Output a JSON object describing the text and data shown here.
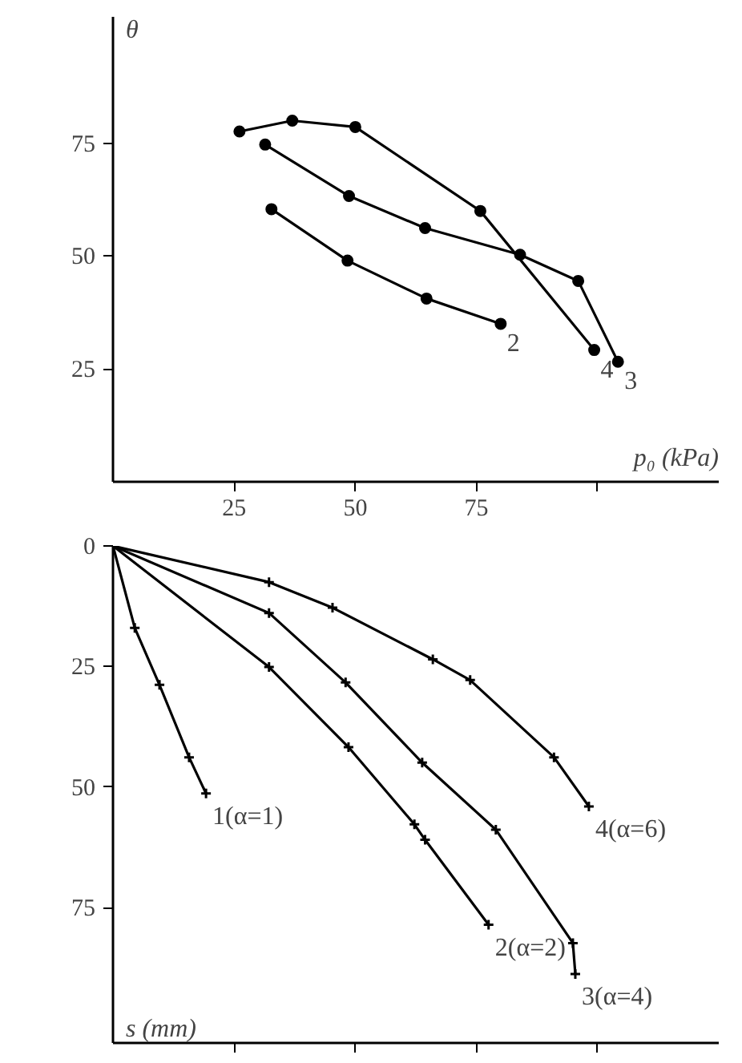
{
  "chart_data": [
    {
      "type": "line",
      "ylabel": "θ",
      "xlabel": "p₀ (kPa)",
      "xlim": [
        0,
        125
      ],
      "ylim": [
        0,
        103
      ],
      "xticks": [
        25,
        50,
        75,
        {
          "value": 100,
          "label": null
        }
      ],
      "yticks": [
        25,
        50,
        75
      ],
      "marker": "circle",
      "grid": false,
      "series": [
        {
          "color": "#000000",
          "x": [
            26.1,
            37,
            50,
            75.8,
            99.3
          ],
          "values": [
            77.6,
            80,
            78.6,
            60,
            29.2
          ]
        },
        {
          "color": "#000000",
          "x": [
            31.4,
            48.7,
            64.4,
            84,
            96,
            104.2
          ],
          "values": [
            74.7,
            63.3,
            56.2,
            50.3,
            44.5,
            26.6
          ]
        },
        {
          "color": "#000000",
          "x": [
            32.7,
            48.4,
            64.7,
            80
          ],
          "values": [
            60.4,
            49,
            40.6,
            35
          ]
        }
      ],
      "annotations": [
        {
          "text": "2",
          "x": 80,
          "y": 35
        },
        {
          "text": "4",
          "x": 99.3,
          "y": 29.2
        },
        {
          "text": "3",
          "x": 104.2,
          "y": 26.6
        }
      ]
    },
    {
      "type": "line",
      "ylabel": "s (mm)",
      "xlim": [
        0,
        125
      ],
      "ylim": [
        103,
        0
      ],
      "xticks": [
        25,
        50,
        75,
        100
      ],
      "yticks": [
        0,
        25,
        50,
        75
      ],
      "tick_labels": "y",
      "marker": "cross",
      "grid": false,
      "series": [
        {
          "color": "#000000",
          "x": [
            0,
            4.5,
            9.6,
            15.7,
            19.2
          ],
          "values": [
            0,
            17,
            28.8,
            43.8,
            51.3
          ]
        },
        {
          "color": "#000000",
          "x": [
            0,
            32.2,
            48.6,
            62.2,
            64.4,
            77.5
          ],
          "values": [
            0,
            25.1,
            41.7,
            57.7,
            60.9,
            78.5
          ]
        },
        {
          "color": "#000000",
          "x": [
            0,
            32.2,
            48,
            63.8,
            79,
            94.9,
            95.4
          ],
          "values": [
            0,
            13.9,
            28.3,
            44.9,
            58.8,
            82.3,
            88.7
          ]
        },
        {
          "color": "#000000",
          "x": [
            0,
            32.2,
            45.3,
            66,
            73.7,
            91,
            98.2
          ],
          "values": [
            0,
            7.5,
            12.8,
            23.5,
            27.8,
            43.8,
            54
          ]
        }
      ],
      "annotations": [
        {
          "text": "1(α=1)",
          "x": 19.2,
          "y": 51.3
        },
        {
          "text": "2(α=2)",
          "x": 77.5,
          "y": 78.5
        },
        {
          "text": "3(α=4)",
          "x": 95.4,
          "y": 88.7
        },
        {
          "text": "4(α=6)",
          "x": 98.2,
          "y": 54
        }
      ]
    }
  ]
}
